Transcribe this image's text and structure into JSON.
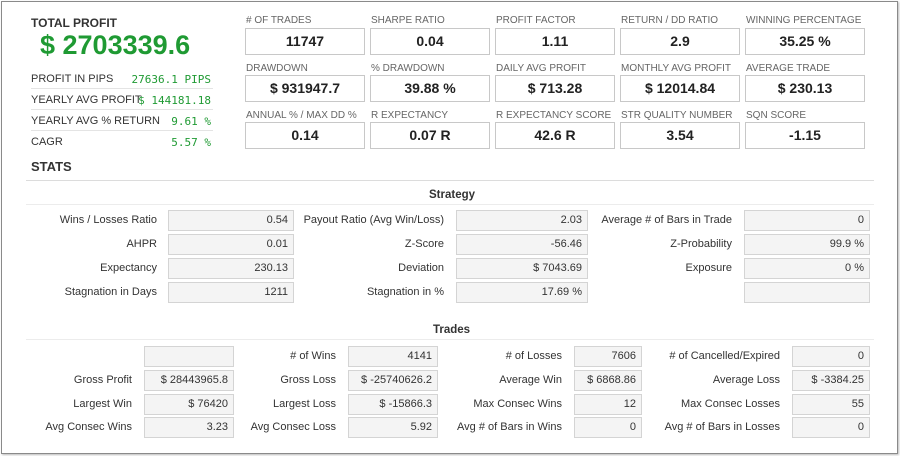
{
  "summary": {
    "total_profit_label": "TOTAL PROFIT",
    "total_profit_value": "$ 2703339.6",
    "rows": [
      {
        "label": "PROFIT IN PIPS",
        "value": "27636.1 PIPS"
      },
      {
        "label": "YEARLY AVG PROFIT",
        "value": "$ 144181.18"
      },
      {
        "label": "YEARLY AVG % RETURN",
        "value": "9.61 %"
      },
      {
        "label": "CAGR",
        "value": "5.57 %"
      }
    ]
  },
  "tiles": [
    {
      "label": "# OF TRADES",
      "value": "11747"
    },
    {
      "label": "SHARPE RATIO",
      "value": "0.04"
    },
    {
      "label": "PROFIT FACTOR",
      "value": "1.11"
    },
    {
      "label": "RETURN / DD RATIO",
      "value": "2.9"
    },
    {
      "label": "WINNING PERCENTAGE",
      "value": "35.25 %"
    },
    {
      "label": "DRAWDOWN",
      "value": "$ 931947.7"
    },
    {
      "label": "% DRAWDOWN",
      "value": "39.88 %"
    },
    {
      "label": "DAILY AVG PROFIT",
      "value": "$ 713.28"
    },
    {
      "label": "MONTHLY AVG PROFIT",
      "value": "$ 12014.84"
    },
    {
      "label": "AVERAGE TRADE",
      "value": "$ 230.13"
    },
    {
      "label": "ANNUAL % / MAX DD %",
      "value": "0.14"
    },
    {
      "label": "R EXPECTANCY",
      "value": "0.07 R"
    },
    {
      "label": "R EXPECTANCY SCORE",
      "value": "42.6 R"
    },
    {
      "label": "STR QUALITY NUMBER",
      "value": "3.54"
    },
    {
      "label": "SQN SCORE",
      "value": "-1.15"
    }
  ],
  "stats_title": "STATS",
  "strategy": {
    "title": "Strategy",
    "rows": [
      [
        {
          "label": "Wins / Losses Ratio",
          "value": "0.54"
        },
        {
          "label": "Payout Ratio (Avg Win/Loss)",
          "value": "2.03"
        },
        {
          "label": "Average # of Bars in Trade",
          "value": "0"
        }
      ],
      [
        {
          "label": "AHPR",
          "value": "0.01"
        },
        {
          "label": "Z-Score",
          "value": "-56.46"
        },
        {
          "label": "Z-Probability",
          "value": "99.9 %"
        }
      ],
      [
        {
          "label": "Expectancy",
          "value": "230.13"
        },
        {
          "label": "Deviation",
          "value": "$ 7043.69"
        },
        {
          "label": "Exposure",
          "value": "0 %"
        }
      ],
      [
        {
          "label": "Stagnation in Days",
          "value": "1211"
        },
        {
          "label": "Stagnation in %",
          "value": "17.69 %"
        },
        {
          "label": "",
          "value": ""
        }
      ]
    ]
  },
  "trades": {
    "title": "Trades",
    "rows": [
      [
        {
          "label": "",
          "value": ""
        },
        {
          "label": "# of Wins",
          "value": "4141"
        },
        {
          "label": "# of Losses",
          "value": "7606"
        },
        {
          "label": "# of Cancelled/Expired",
          "value": "0"
        }
      ],
      [
        {
          "label": "Gross Profit",
          "value": "$ 28443965.8"
        },
        {
          "label": "Gross Loss",
          "value": "$ -25740626.2"
        },
        {
          "label": "Average Win",
          "value": "$ 6868.86"
        },
        {
          "label": "Average Loss",
          "value": "$ -3384.25"
        }
      ],
      [
        {
          "label": "Largest Win",
          "value": "$ 76420"
        },
        {
          "label": "Largest Loss",
          "value": "$ -15866.3"
        },
        {
          "label": "Max Consec Wins",
          "value": "12"
        },
        {
          "label": "Max Consec Losses",
          "value": "55"
        }
      ],
      [
        {
          "label": "Avg Consec Wins",
          "value": "3.23"
        },
        {
          "label": "Avg Consec Loss",
          "value": "5.92"
        },
        {
          "label": "Avg # of Bars in Wins",
          "value": "0"
        },
        {
          "label": "Avg # of Bars in Losses",
          "value": "0"
        }
      ]
    ]
  }
}
